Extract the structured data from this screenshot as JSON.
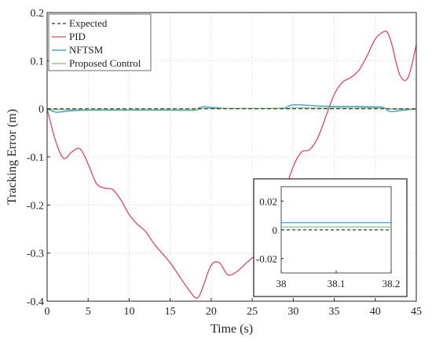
{
  "chart_data": {
    "type": "line",
    "xlabel": "Time (s)",
    "ylabel": "Tracking Error (m)",
    "xlim": [
      0,
      45
    ],
    "ylim": [
      -0.4,
      0.2
    ],
    "x_ticks": [
      "0",
      "5",
      "10",
      "15",
      "20",
      "25",
      "30",
      "35",
      "40",
      "45"
    ],
    "y_ticks": [
      "-0.4",
      "-0.3",
      "-0.2",
      "-0.1",
      "0",
      "0.1",
      "0.2"
    ],
    "grid": true,
    "legend_position": "top-left",
    "series": [
      {
        "name": "Expected",
        "color": "#333333",
        "dash": true,
        "x": [
          0,
          45
        ],
        "y": [
          0,
          0
        ]
      },
      {
        "name": "PID",
        "color": "#d9485f",
        "dash": false,
        "x": [
          0,
          1,
          2,
          3,
          4,
          5,
          6,
          7,
          8,
          9,
          10,
          11,
          12,
          13,
          14,
          15,
          16,
          17,
          18,
          18.5,
          19,
          20,
          21,
          22,
          23,
          24,
          25,
          26,
          27,
          28,
          29,
          30,
          31,
          32,
          33,
          34,
          35,
          36,
          37,
          38,
          39,
          40,
          41,
          41.5,
          42,
          43,
          44,
          45
        ],
        "y": [
          0,
          -0.065,
          -0.103,
          -0.09,
          -0.083,
          -0.115,
          -0.155,
          -0.165,
          -0.168,
          -0.19,
          -0.22,
          -0.24,
          -0.255,
          -0.28,
          -0.3,
          -0.32,
          -0.345,
          -0.37,
          -0.392,
          -0.39,
          -0.37,
          -0.325,
          -0.32,
          -0.345,
          -0.34,
          -0.325,
          -0.31,
          -0.3,
          -0.275,
          -0.22,
          -0.17,
          -0.12,
          -0.09,
          -0.085,
          -0.06,
          -0.015,
          0.03,
          0.055,
          0.065,
          0.08,
          0.11,
          0.145,
          0.16,
          0.158,
          0.135,
          0.07,
          0.065,
          0.133
        ]
      },
      {
        "name": "NFTSM",
        "color": "#2a8fd0",
        "dash": false,
        "x": [
          0,
          0.5,
          1,
          1.5,
          2,
          3,
          5,
          10,
          15,
          18,
          18.5,
          19,
          19.5,
          20,
          21,
          22,
          25,
          28,
          29,
          29.5,
          30,
          31,
          33,
          35,
          38,
          40,
          41,
          41.5,
          42,
          43,
          44,
          45
        ],
        "y": [
          0,
          -0.004,
          -0.007,
          -0.007,
          -0.006,
          -0.004,
          -0.003,
          -0.003,
          -0.003,
          -0.003,
          0.002,
          0.004,
          0.004,
          0.003,
          0.002,
          0.001,
          0.001,
          0.001,
          0.002,
          0.006,
          0.008,
          0.008,
          0.006,
          0.005,
          0.005,
          0.004,
          0.003,
          -0.004,
          -0.006,
          -0.004,
          -0.002,
          -0.001
        ]
      },
      {
        "name": "Proposed Control",
        "color": "#7cc16a",
        "dash": false,
        "x": [
          0,
          1,
          2,
          5,
          10,
          15,
          18,
          19,
          20,
          25,
          29,
          30,
          35,
          40,
          41,
          42,
          45
        ],
        "y": [
          0,
          -0.002,
          -0.002,
          -0.002,
          -0.002,
          -0.002,
          -0.002,
          0.001,
          0.001,
          0.001,
          0.001,
          0.002,
          0.002,
          0.002,
          0.002,
          -0.001,
          -0.001
        ]
      }
    ],
    "inset": {
      "xlim": [
        38,
        38.2
      ],
      "ylim": [
        -0.03,
        0.03
      ],
      "x_ticks": [
        "38",
        "38.1",
        "38.2"
      ],
      "y_ticks": [
        "0.02",
        "0",
        "-0.02"
      ],
      "series_values": {
        "Expected": 0,
        "NFTSM": 0.005,
        "Proposed Control": 0.002
      }
    }
  }
}
